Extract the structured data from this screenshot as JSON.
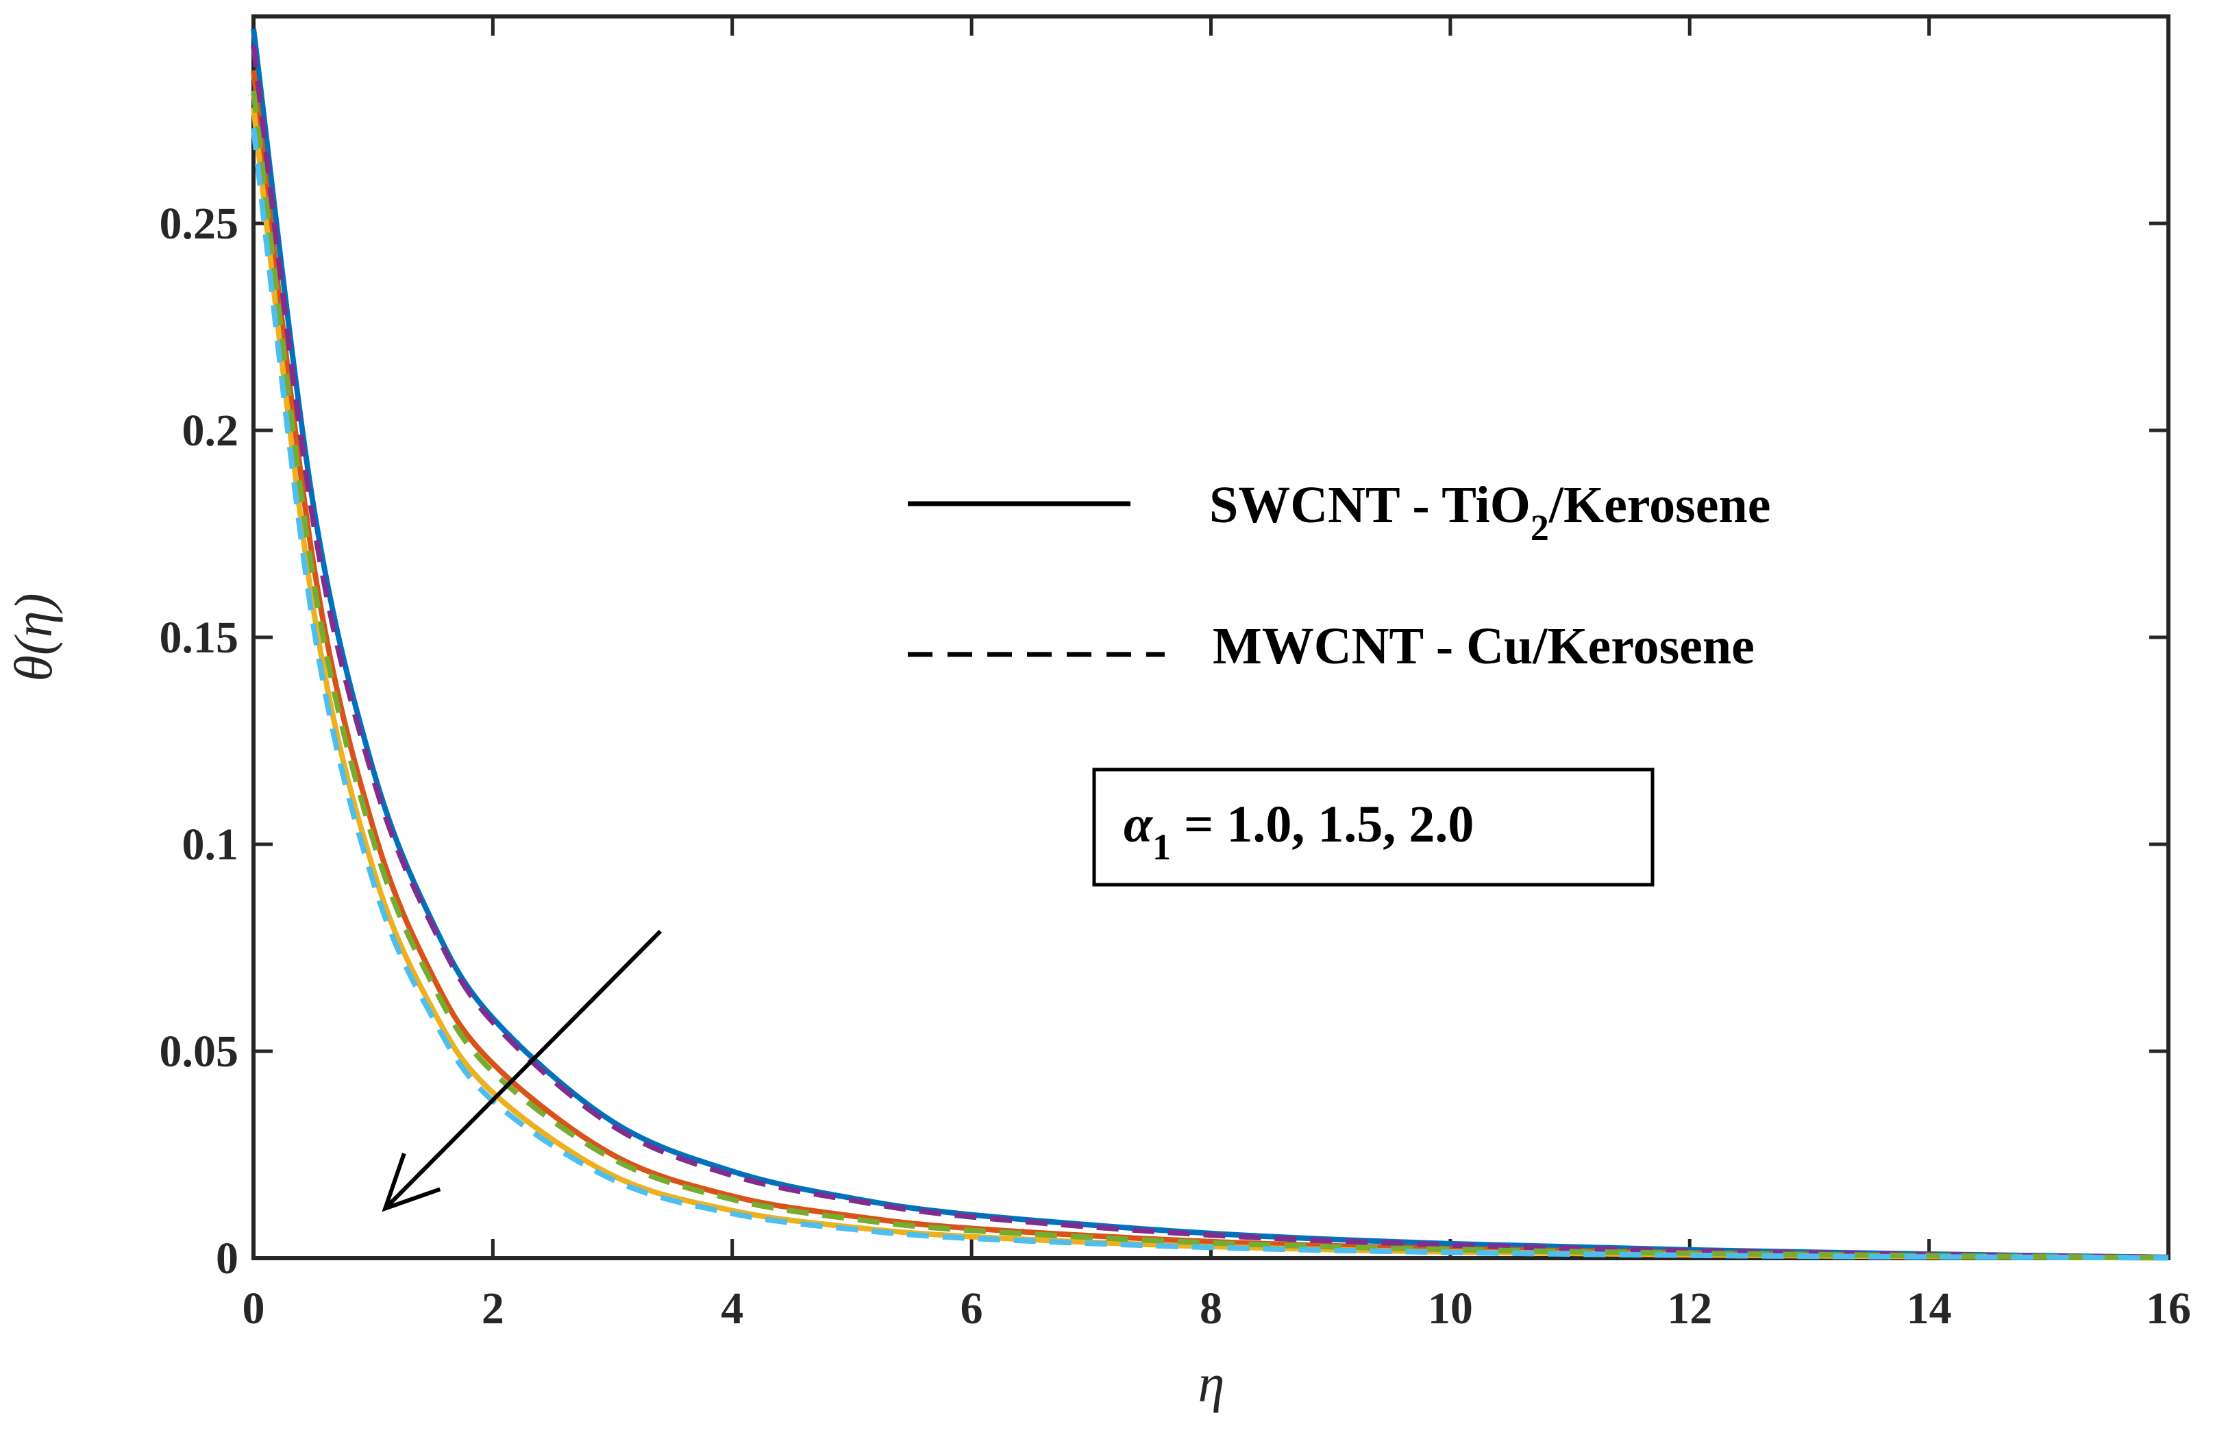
{
  "chart_data": {
    "type": "line",
    "title": "",
    "xlabel": "η",
    "ylabel": "θ(η)",
    "xlim": [
      0,
      16
    ],
    "ylim": [
      0,
      0.3
    ],
    "x_ticks": [
      0,
      2,
      4,
      6,
      8,
      10,
      12,
      14,
      16
    ],
    "y_ticks": [
      0,
      0.05,
      0.1,
      0.15,
      0.2,
      0.25
    ],
    "x_tick_labels": [
      "0",
      "2",
      "4",
      "6",
      "8",
      "10",
      "12",
      "14",
      "16"
    ],
    "y_tick_labels": [
      "0",
      "0.05",
      "0.1",
      "0.15",
      "0.2",
      "0.25"
    ],
    "grid": false,
    "x": [
      0,
      0.5,
      1,
      1.5,
      2,
      3,
      4,
      5,
      6,
      8,
      10,
      12,
      14,
      16
    ],
    "series": [
      {
        "name": "SWCNT - TiO2/Kerosene, α1 = 1.0",
        "color": "#0072BD",
        "dash": "solid",
        "values": [
          0.297,
          0.182,
          0.118,
          0.081,
          0.058,
          0.033,
          0.021,
          0.0145,
          0.0105,
          0.006,
          0.0035,
          0.002,
          0.001,
          0.0002
        ]
      },
      {
        "name": "SWCNT - TiO2/Kerosene, α1 = 1.5",
        "color": "#D95319",
        "dash": "solid",
        "values": [
          0.287,
          0.168,
          0.104,
          0.068,
          0.047,
          0.025,
          0.015,
          0.0102,
          0.0072,
          0.004,
          0.0023,
          0.0013,
          0.0006,
          0.0001
        ]
      },
      {
        "name": "SWCNT - TiO2/Kerosene, α1 = 2.0",
        "color": "#EDB120",
        "dash": "solid",
        "values": [
          0.278,
          0.157,
          0.094,
          0.06,
          0.04,
          0.02,
          0.0115,
          0.0075,
          0.0052,
          0.0028,
          0.0015,
          0.0008,
          0.0004,
          0.0001
        ]
      },
      {
        "name": "MWCNT - Cu/Kerosene, α1 = 1.0",
        "color": "#7E2F8E",
        "dash": "dashed",
        "values": [
          0.293,
          0.178,
          0.116,
          0.08,
          0.057,
          0.032,
          0.02,
          0.014,
          0.01,
          0.0056,
          0.0032,
          0.0018,
          0.0009,
          0.0002
        ]
      },
      {
        "name": "MWCNT - Cu/Kerosene, α1 = 1.5",
        "color": "#77AC30",
        "dash": "dashed",
        "values": [
          0.282,
          0.164,
          0.101,
          0.066,
          0.045,
          0.024,
          0.0142,
          0.0095,
          0.0067,
          0.0037,
          0.0021,
          0.0012,
          0.0006,
          0.0001
        ]
      },
      {
        "name": "MWCNT - Cu/Kerosene, α1 = 2.0",
        "color": "#4DBEEE",
        "dash": "dashed",
        "values": [
          0.273,
          0.153,
          0.091,
          0.058,
          0.038,
          0.019,
          0.0108,
          0.007,
          0.0048,
          0.0026,
          0.0014,
          0.0007,
          0.0003,
          0.0001
        ]
      }
    ],
    "legend": {
      "placement": "upper-right",
      "entries": [
        {
          "style": "solid",
          "label_main": "SWCNT - TiO",
          "label_sub": "2",
          "label_rest": "/Kerosene"
        },
        {
          "style": "dashed",
          "label_main": "MWCNT - Cu/Kerosene"
        }
      ]
    },
    "annotation": {
      "symbol": "α",
      "subscript": "1",
      "text": " = 1.0, 1.5, 2.0",
      "arrow_from": [
        3.4,
        0.079
      ],
      "arrow_to": [
        1.1,
        0.012
      ]
    }
  }
}
